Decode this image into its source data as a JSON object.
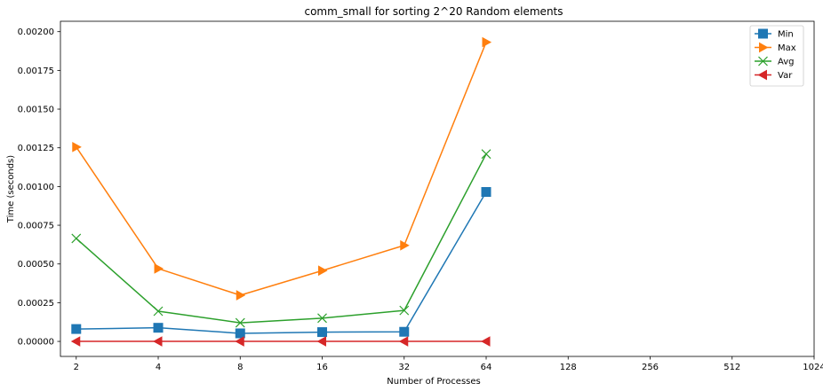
{
  "chart_data": {
    "type": "line",
    "title": "comm_small for sorting 2^20 Random elements",
    "xlabel": "Number of Processes",
    "ylabel": "Time (seconds)",
    "x_scale": "log2",
    "x_ticks": [
      "2",
      "4",
      "8",
      "16",
      "32",
      "64",
      "128",
      "256",
      "512",
      "1024"
    ],
    "x_tick_values": [
      2,
      4,
      8,
      16,
      32,
      64,
      128,
      256,
      512,
      1024
    ],
    "xlim": [
      1.75,
      1024
    ],
    "y_ticks": [
      "0.00000",
      "0.00025",
      "0.00050",
      "0.00075",
      "0.00100",
      "0.00125",
      "0.00150",
      "0.00175",
      "0.00200"
    ],
    "y_tick_values": [
      0,
      0.00025,
      0.0005,
      0.00075,
      0.001,
      0.00125,
      0.0015,
      0.00175,
      0.002
    ],
    "ylim": [
      -9.7e-05,
      0.002067
    ],
    "grid": false,
    "legend_position": "top-right",
    "x": [
      2,
      4,
      8,
      16,
      32,
      64
    ],
    "series": [
      {
        "name": "Min",
        "color": "#1f77b4",
        "marker": "square",
        "values": [
          8e-05,
          8.8e-05,
          5.2e-05,
          6e-05,
          6.2e-05,
          0.000965
        ]
      },
      {
        "name": "Max",
        "color": "#ff7f0e",
        "marker": "triangle-right",
        "values": [
          0.001255,
          0.00047,
          0.000298,
          0.000457,
          0.00062,
          0.001932
        ]
      },
      {
        "name": "Avg",
        "color": "#2ca02c",
        "marker": "x",
        "values": [
          0.000665,
          0.000195,
          0.00012,
          0.00015,
          0.0002,
          0.00121
        ]
      },
      {
        "name": "Var",
        "color": "#d62728",
        "marker": "triangle-left",
        "values": [
          0.0,
          0.0,
          0.0,
          0.0,
          0.0,
          0.0
        ]
      }
    ]
  }
}
